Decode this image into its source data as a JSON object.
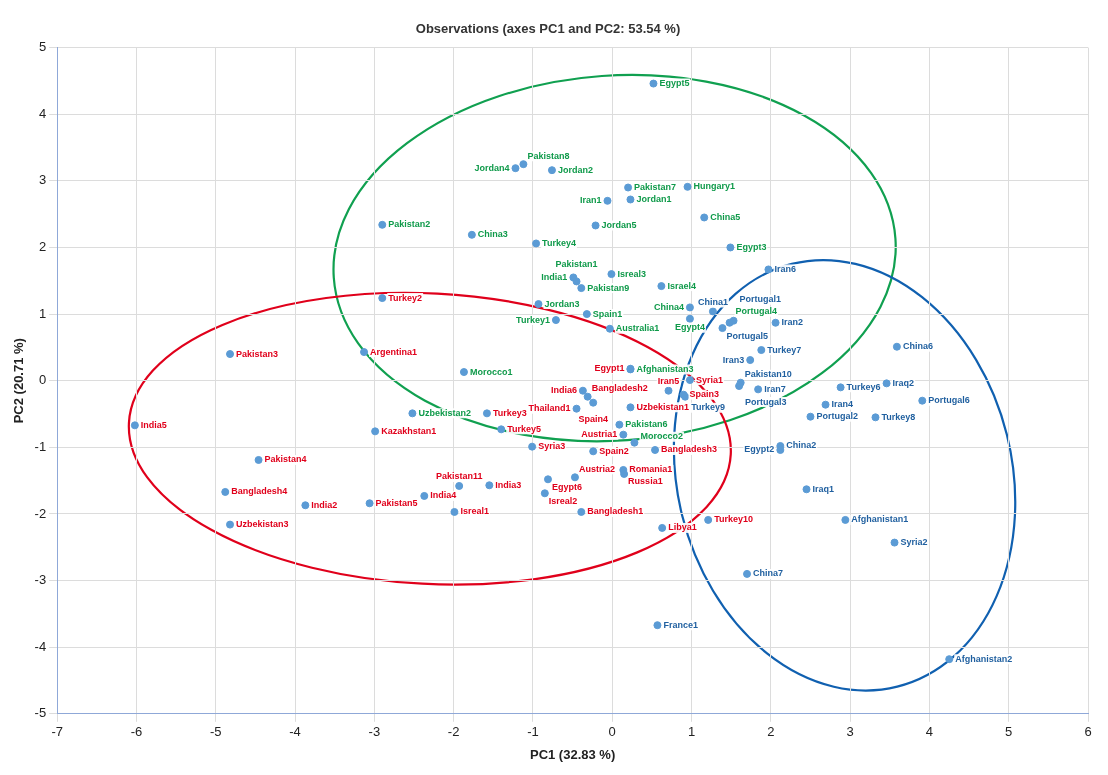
{
  "chart_data": {
    "type": "scatter",
    "title": "Observations (axes PC1 and PC2: 53.54 %)",
    "xlabel": "PC1 (32.83 %)",
    "ylabel": "PC2 (20.71 %)",
    "xlim": [
      -7,
      6
    ],
    "xticks": [
      -7,
      -6,
      -5,
      -4,
      -3,
      -2,
      -1,
      0,
      1,
      2,
      3,
      4,
      5,
      6
    ],
    "ylim": [
      -5,
      5
    ],
    "yticks": [
      -5,
      -4,
      -3,
      -2,
      -1,
      0,
      1,
      2,
      3,
      4,
      5
    ],
    "grid": true,
    "legend": false,
    "marker": "circle",
    "series": [
      {
        "color": "#5b9bd5",
        "x": [
          0.52,
          -1.12,
          -1.22,
          -0.76,
          0.2,
          0.95,
          -0.06,
          0.23,
          1.16,
          -2.9,
          -1.77,
          -0.21,
          -0.96,
          1.49,
          -0.49,
          -0.45,
          -0.39,
          -0.01,
          0.62,
          -0.93,
          -0.32,
          -0.71,
          -0.03,
          0.98,
          0.98,
          1.48,
          0.23,
          -1.87,
          -2.52,
          0.09,
          0.28
        ],
        "values": [
          4.46,
          3.25,
          3.19,
          3.16,
          2.9,
          2.91,
          2.7,
          2.72,
          2.45,
          2.34,
          2.19,
          2.33,
          2.06,
          2.0,
          1.55,
          1.49,
          1.39,
          1.6,
          1.42,
          1.15,
          1.0,
          0.91,
          0.78,
          1.1,
          0.93,
          0.87,
          0.17,
          0.13,
          -0.49,
          -0.66,
          -0.93
        ],
        "value_labels": [
          "Egypt5",
          "Pakistan8",
          "Jordan4",
          "Jordan2",
          "Pakistan7",
          "Hungary1",
          "Iran1",
          "Jordan1",
          "China5",
          "Pakistan2",
          "China3",
          "Jordan5",
          "Turkey4",
          "Egypt3",
          "India1",
          "Pakistan1",
          "Pakistan9",
          "Isreal3",
          "Israel4",
          "Jordan3",
          "Spain1",
          "Turkey1",
          "Australia1",
          "China4",
          "Egypt4",
          "Portugal4",
          "Afghanistan3",
          "Morocco1",
          "Uzbekistan2",
          "Pakistan6",
          "Morocco2"
        ]
      },
      {
        "color": "#5b9bd5",
        "x": [
          -2.9,
          -3.13,
          -4.82,
          -6.02,
          -1.58,
          -2.99,
          -1.4,
          -4.46,
          -1.01,
          -4.88,
          -3.87,
          -3.06,
          -2.37,
          -1.93,
          -1.55,
          -1.99,
          -0.81,
          -0.85,
          -0.47,
          -0.39,
          -0.24,
          0.14,
          0.15,
          0.14,
          -0.45,
          0.54,
          -0.37,
          -0.31,
          -0.24,
          0.23,
          0.71,
          0.9,
          0.98,
          0.63,
          1.21,
          -4.82,
          0.23
        ],
        "values": [
          1.24,
          0.43,
          0.4,
          -0.67,
          -0.49,
          -0.76,
          -0.73,
          -1.19,
          -0.99,
          -1.67,
          -1.87,
          -1.84,
          -1.73,
          -1.58,
          -1.57,
          -1.97,
          -1.48,
          -1.69,
          -1.45,
          -1.97,
          -1.06,
          -1.34,
          -1.4,
          -0.81,
          -0.42,
          -1.04,
          -0.15,
          -0.24,
          -0.33,
          -0.4,
          -0.15,
          -0.21,
          0.01,
          -2.21,
          -2.09,
          -2.16,
          0.18
        ],
        "value_labels": [
          "Turkey2",
          "Argentina1",
          "Pakistan3",
          "India5",
          "Turkey3",
          "Kazakhstan1",
          "Turkey5",
          "Pakistan4",
          "Syria3",
          "Bangladesh4",
          "India2",
          "Pakistan5",
          "India4",
          "Pakistan11",
          "India3",
          "Isreal1",
          "Egypt6",
          "Isreal2",
          "Austria2",
          "Bangladesh1",
          "Spain2",
          "Romania1",
          "Russia1",
          "Austria1",
          "Thailand1",
          "Bangladesh3",
          "India6",
          "Bangladesh2",
          "Spain4",
          "Uzbekistan1",
          "Iran5",
          "Spain3",
          "Syria1",
          "Libya1",
          "Turkey10",
          "Uzbekistan3",
          "Egypt1"
        ]
      },
      {
        "color": "#5b9bd5",
        "x": [
          1.97,
          1.27,
          1.39,
          1.53,
          2.06,
          1.88,
          1.74,
          1.62,
          1.84,
          1.6,
          0.92,
          2.88,
          3.46,
          2.69,
          3.91,
          2.5,
          3.32,
          3.59,
          2.12,
          2.12,
          2.45,
          2.94,
          3.56,
          1.7,
          0.57,
          4.25
        ],
        "values": [
          1.67,
          1.04,
          0.79,
          0.9,
          0.87,
          0.46,
          0.31,
          -0.03,
          -0.13,
          -0.08,
          -0.24,
          -0.1,
          -0.04,
          -0.36,
          -0.3,
          -0.54,
          -0.55,
          0.51,
          -0.98,
          -1.04,
          -1.63,
          -2.09,
          -2.43,
          -2.9,
          -3.67,
          -4.18
        ],
        "value_labels": [
          "Iran6",
          "China1",
          "Portugal5",
          "Portugal1",
          "Iran2",
          "Turkey7",
          "Iran3",
          "Pakistan10",
          "Iran7",
          "Portugal3",
          "Turkey9",
          "Turkey6",
          "Iraq2",
          "Iran4",
          "Portugal6",
          "Portugal2",
          "Turkey8",
          "China6",
          "China2",
          "Egypt2",
          "Iraq1",
          "Afghanistan1",
          "Syria2",
          "China7",
          "France1",
          "Afghanistan2"
        ]
      }
    ]
  }
}
